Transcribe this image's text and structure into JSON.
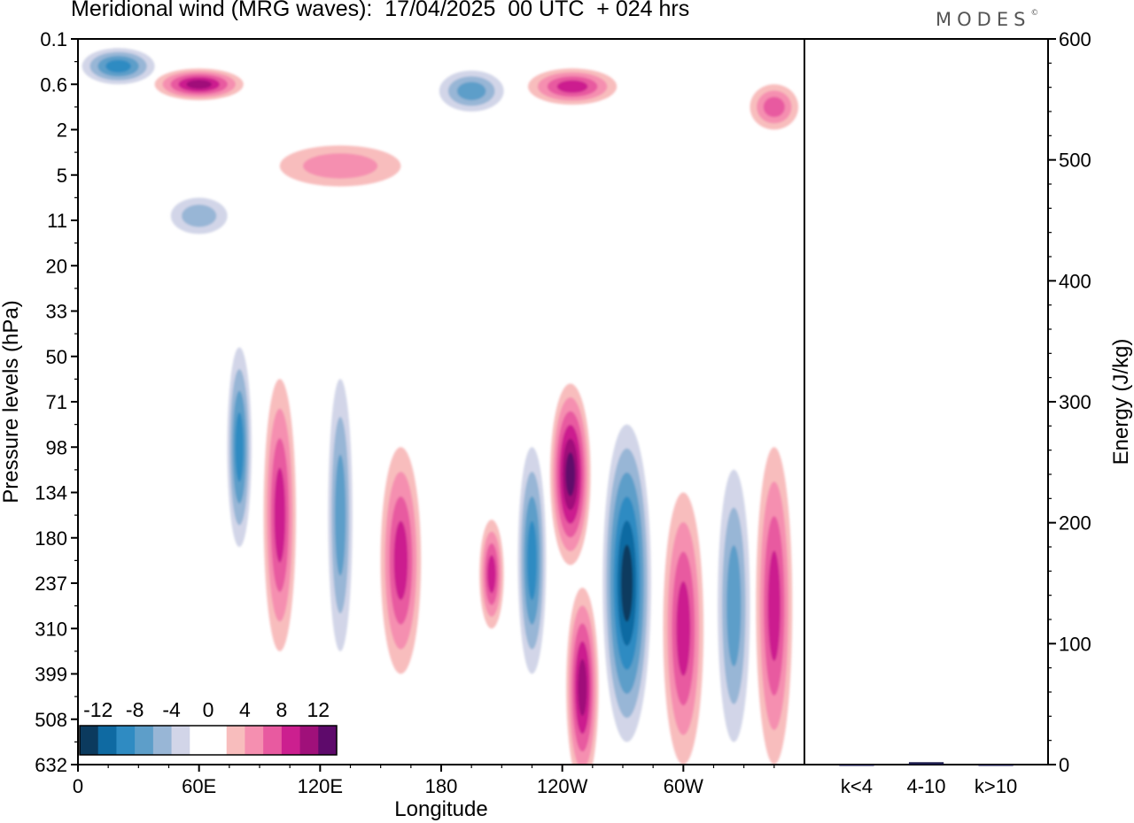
{
  "title": "Meridional wind (MRG waves):  17/04/2025  00 UTC  + 024 hrs",
  "brand": {
    "name": "MODES",
    "mark": "©"
  },
  "chart_data": [
    {
      "type": "heatmap",
      "title": "Meridional wind (MRG waves):  17/04/2025  00 UTC  + 024 hrs",
      "xlabel": "Longitude",
      "ylabel": "Pressure levels (hPa)",
      "x_ticks": [
        "0",
        "60E",
        "120E",
        "180",
        "120W",
        "60W"
      ],
      "x_tick_degrees": [
        0,
        60,
        120,
        180,
        240,
        300
      ],
      "xlim": [
        0,
        360
      ],
      "y_ticks": [
        "0.1",
        "0.6",
        "2",
        "5",
        "11",
        "20",
        "33",
        "50",
        "71",
        "98",
        "134",
        "180",
        "237",
        "310",
        "399",
        "508",
        "632"
      ],
      "y_direction": "top-to-bottom",
      "colorbar": {
        "placement": "bottom-left",
        "labels": [
          "-12",
          "-8",
          "-4",
          "0",
          "4",
          "8",
          "12"
        ],
        "levels": [
          -14,
          -12,
          -10,
          -8,
          -6,
          -4,
          -2,
          2,
          4,
          6,
          8,
          10,
          12,
          14
        ],
        "colors": [
          "#0b3a5e",
          "#0f6aa2",
          "#2f8bc2",
          "#5d9ec9",
          "#98b6d6",
          "#d2d5e8",
          "#ffffff",
          "#ffffff",
          "#f8bdbd",
          "#f58fb0",
          "#e85aa0",
          "#cc1f8f",
          "#a0107a",
          "#5e0a6b"
        ]
      },
      "features": [
        {
          "lon": 60,
          "level": 1.0,
          "value": 10,
          "w": 22,
          "h": 0.35
        },
        {
          "lon": 20,
          "level": 0.6,
          "value": -8,
          "w": 18,
          "h": 0.4
        },
        {
          "lon": 60,
          "level": 3.9,
          "value": -5,
          "w": 14,
          "h": 0.4
        },
        {
          "lon": 195,
          "level": 1.15,
          "value": -7,
          "w": 16,
          "h": 0.45
        },
        {
          "lon": 245,
          "level": 1.05,
          "value": 9,
          "w": 22,
          "h": 0.4
        },
        {
          "lon": 345,
          "level": 1.5,
          "value": 7,
          "w": 12,
          "h": 0.5
        },
        {
          "lon": 130,
          "level": 2.8,
          "value": 5,
          "w": 30,
          "h": 0.45
        },
        {
          "lon": 80,
          "level": 9.0,
          "value": -8,
          "w": 6,
          "h": 2.2
        },
        {
          "lon": 100,
          "level": 10.5,
          "value": 8,
          "w": 8,
          "h": 3.0
        },
        {
          "lon": 130,
          "level": 10.5,
          "value": -7,
          "w": 6,
          "h": 3.0
        },
        {
          "lon": 160,
          "level": 11.5,
          "value": 8,
          "w": 10,
          "h": 2.5
        },
        {
          "lon": 205,
          "level": 11.8,
          "value": 8,
          "w": 6,
          "h": 1.2
        },
        {
          "lon": 225,
          "level": 11.5,
          "value": -9,
          "w": 7,
          "h": 2.5
        },
        {
          "lon": 244,
          "level": 9.6,
          "value": 13,
          "w": 10,
          "h": 2.0
        },
        {
          "lon": 250,
          "level": 14.3,
          "value": 10,
          "w": 8,
          "h": 2.2
        },
        {
          "lon": 272,
          "level": 12.0,
          "value": -13,
          "w": 12,
          "h": 3.5
        },
        {
          "lon": 300,
          "level": 13.0,
          "value": 8,
          "w": 10,
          "h": 3.0
        },
        {
          "lon": 325,
          "level": 12.5,
          "value": -7,
          "w": 8,
          "h": 3.0
        },
        {
          "lon": 345,
          "level": 12.5,
          "value": 8,
          "w": 9,
          "h": 3.5
        }
      ]
    },
    {
      "type": "bar",
      "categories": [
        "k<4",
        "4-10",
        "k>10"
      ],
      "values": [
        0,
        2,
        0
      ],
      "ylabel": "Energy (J/kg)",
      "y_ticks": [
        "0",
        "100",
        "200",
        "300",
        "400",
        "500",
        "600"
      ],
      "ylim": [
        0,
        600
      ],
      "bar_color": "#1a1a4a"
    }
  ]
}
